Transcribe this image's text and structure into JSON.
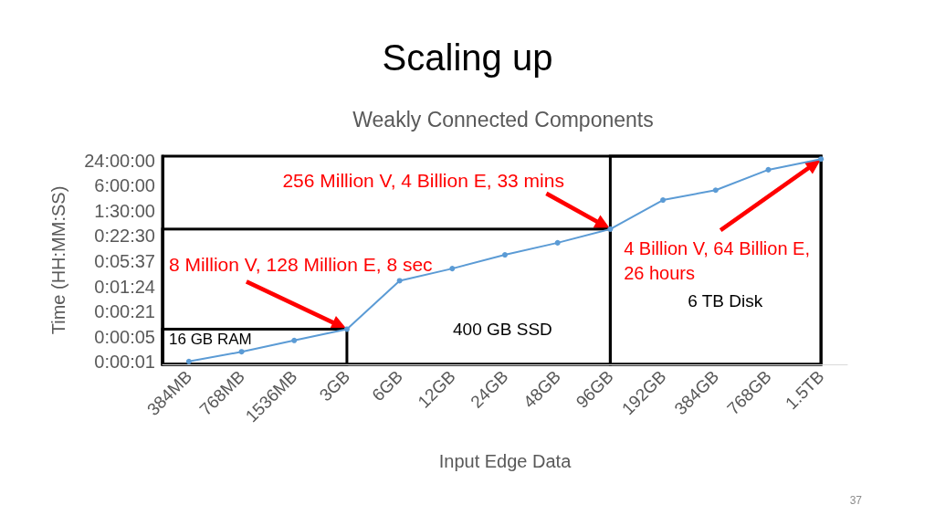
{
  "chart_data": {
    "type": "line",
    "title": "Scaling up",
    "subtitle": "Weakly Connected Components",
    "xlabel": "Input Edge Data",
    "ylabel": "Time (HH:MM:SS)",
    "categories": [
      "384MB",
      "768MB",
      "1536MB",
      "3GB",
      "6GB",
      "12GB",
      "24GB",
      "48GB",
      "96GB",
      "192GB",
      "384GB",
      "768GB",
      "1.5TB"
    ],
    "values": [
      1.35,
      2.3,
      4.3,
      8,
      115,
      225,
      480,
      930,
      1980,
      9800,
      16900,
      52000,
      93600
    ],
    "color": "#5b9bd5",
    "marker": "circle",
    "line_style": "solid",
    "log": true,
    "ylim": [
      1.15,
      110000
    ],
    "yticks": [
      {
        "value": 1.318,
        "label": "0:00:01"
      },
      {
        "value": 5.273,
        "label": "0:00:05"
      },
      {
        "value": 21.09,
        "label": "0:00:21"
      },
      {
        "value": 84.38,
        "label": "0:01:24"
      },
      {
        "value": 337.5,
        "label": "0:05:37"
      },
      {
        "value": 1350,
        "label": "0:22:30"
      },
      {
        "value": 5400,
        "label": "1:30:00"
      },
      {
        "value": 21600,
        "label": "6:00:00"
      },
      {
        "value": 86400,
        "label": "24:00:00"
      }
    ],
    "annotations": [
      {
        "text": "8 Million V, 128 Million E, 8 sec",
        "x": "3GB",
        "y": 8
      },
      {
        "text": "256 Million V, 4 Billion E, 33 mins",
        "x": "96GB",
        "y": 1980
      },
      "4 Billion V, 64 Billion E, 26 hours",
      "16 GB RAM",
      "400 GB SSD",
      "6 TB Disk",
      "37"
    ]
  }
}
